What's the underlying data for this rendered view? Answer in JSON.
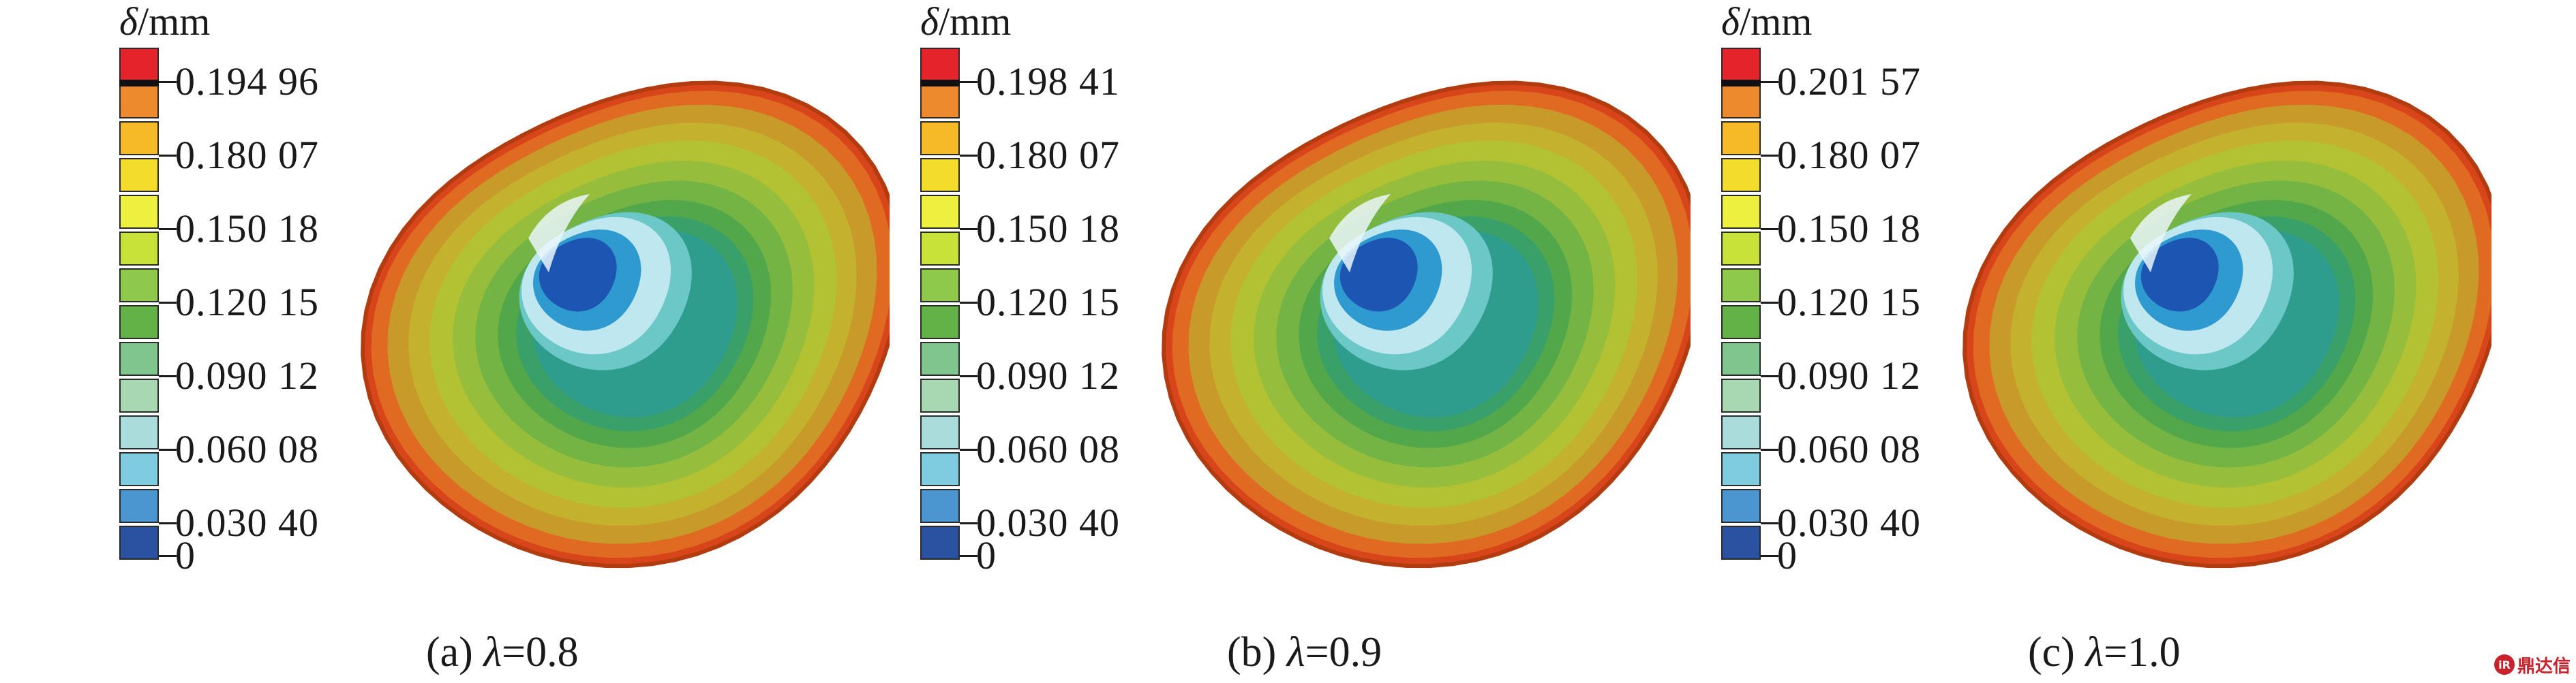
{
  "legend_title": {
    "symbol": "δ",
    "unit": "/mm"
  },
  "colorscale": [
    "#e4232a",
    "#ee8a2e",
    "#f6b927",
    "#f4dc2c",
    "#eef040",
    "#c9e23a",
    "#8fc94c",
    "#63b247",
    "#7fc58d",
    "#a8d8b2",
    "#a9dcdb",
    "#7fcbe0",
    "#4b95d1",
    "#2a52a0"
  ],
  "panels": [
    {
      "caption_label": "(a) ",
      "caption_var": "λ",
      "caption_value": "=0.8",
      "ticks": [
        "0.194 96",
        "0.180 07",
        "0.150 18",
        "0.120 15",
        "0.090 12",
        "0.060 08",
        "0.030 40",
        "0"
      ]
    },
    {
      "caption_label": "(b) ",
      "caption_var": "λ",
      "caption_value": "=0.9",
      "ticks": [
        "0.198 41",
        "0.180 07",
        "0.150 18",
        "0.120 15",
        "0.090 12",
        "0.060 08",
        "0.030 40",
        "0"
      ]
    },
    {
      "caption_label": "(c) ",
      "caption_var": "λ",
      "caption_value": "=1.0",
      "ticks": [
        "0.201 57",
        "0.180 07",
        "0.150 18",
        "0.120 15",
        "0.090 12",
        "0.060 08",
        "0.030 40",
        "0"
      ]
    }
  ],
  "watermark": {
    "logo": "iR",
    "text": "鼎达信"
  }
}
